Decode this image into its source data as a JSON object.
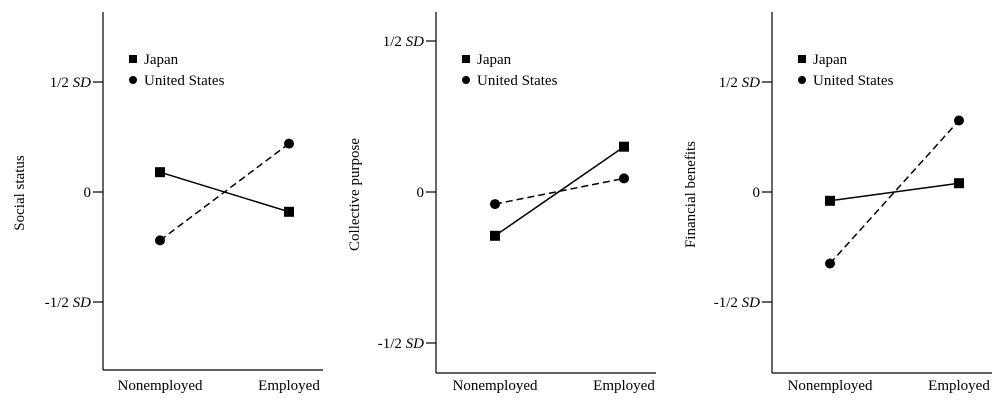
{
  "chart_data": [
    {
      "type": "line",
      "ylabel": "Social status",
      "categories": [
        "Nonemployed",
        "Employed"
      ],
      "ylim": [
        -0.85,
        0.85
      ],
      "ytick_values": [
        0.5,
        0,
        -0.5
      ],
      "ytick_labels": [
        {
          "text": "1/2 ",
          "unit": "SD"
        },
        {
          "text": "0",
          "unit": ""
        },
        {
          "text": "-1/2 ",
          "unit": "SD"
        }
      ],
      "legend": "top-left",
      "series": [
        {
          "name": "Japan",
          "values": [
            0.09,
            -0.09
          ],
          "dash": "solid",
          "marker": "square"
        },
        {
          "name": "United States",
          "values": [
            -0.22,
            0.22
          ],
          "dash": "dashed",
          "marker": "circle"
        }
      ]
    },
    {
      "type": "line",
      "ylabel": "Collective purpose",
      "categories": [
        "Nonemployed",
        "Employed"
      ],
      "ylim": [
        -0.85,
        0.85
      ],
      "ytick_values": [
        0.5,
        0,
        -0.5
      ],
      "ytick_labels": [
        {
          "text": "1/2 ",
          "unit": "SD"
        },
        {
          "text": "0",
          "unit": ""
        },
        {
          "text": "-1/2 ",
          "unit": "SD"
        }
      ],
      "legend": "top-left",
      "series": [
        {
          "name": "Japan",
          "values": [
            -0.145,
            0.15
          ],
          "dash": "solid",
          "marker": "square"
        },
        {
          "name": "United States",
          "values": [
            -0.04,
            0.045
          ],
          "dash": "dashed",
          "marker": "circle"
        }
      ]
    },
    {
      "type": "line",
      "ylabel": "Financial benefits",
      "categories": [
        "Nonemployed",
        "Employed"
      ],
      "ylim": [
        -0.85,
        0.85
      ],
      "ytick_values": [
        0.5,
        0,
        -0.5
      ],
      "ytick_labels": [
        {
          "text": "1/2 ",
          "unit": "SD"
        },
        {
          "text": "0",
          "unit": ""
        },
        {
          "text": "-1/2 ",
          "unit": "SD"
        }
      ],
      "legend": "top-left",
      "series": [
        {
          "name": "Japan",
          "values": [
            -0.04,
            0.04
          ],
          "dash": "solid",
          "marker": "square"
        },
        {
          "name": "United States",
          "values": [
            -0.325,
            0.325
          ],
          "dash": "dashed",
          "marker": "circle"
        }
      ]
    }
  ]
}
